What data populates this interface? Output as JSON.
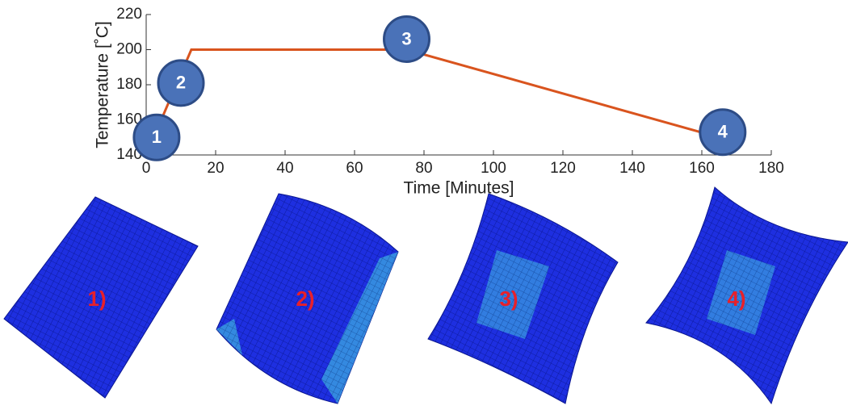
{
  "chart_data": {
    "type": "line",
    "xlabel": "Time [Minutes]",
    "ylabel": "Temperature [˚C]",
    "x": [
      0,
      13,
      75,
      165
    ],
    "values": [
      140,
      200,
      200,
      150
    ],
    "color": "#d9541e",
    "xlim": [
      0,
      180
    ],
    "xticks": [
      0,
      20,
      40,
      60,
      80,
      100,
      120,
      140,
      160,
      180
    ],
    "ylim": [
      140,
      220
    ],
    "yticks": [
      140,
      160,
      180,
      200,
      220
    ],
    "grid": false,
    "annotations": [
      {
        "label": "1",
        "x": 3,
        "y": 150
      },
      {
        "label": "2",
        "x": 10,
        "y": 181
      },
      {
        "label": "3",
        "x": 75,
        "y": 206
      },
      {
        "label": "4",
        "x": 166,
        "y": 153
      }
    ]
  },
  "figure_panels": [
    "1)",
    "2)",
    "3)",
    "4)"
  ]
}
